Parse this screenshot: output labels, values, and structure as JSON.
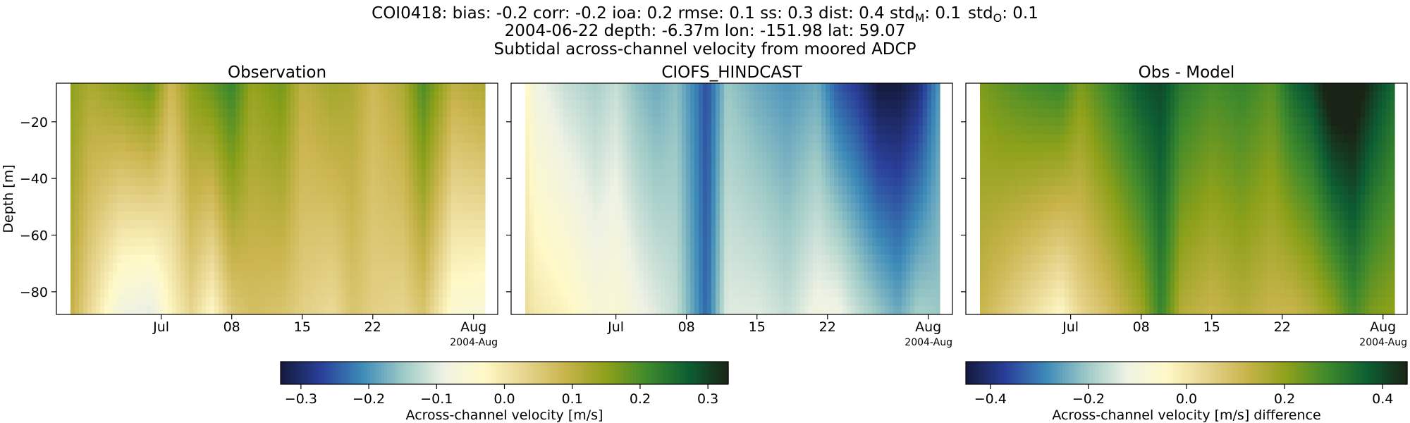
{
  "header": {
    "stats": "COI0418: bias: -0.2  corr: -0.2  ioa: 0.2  rmse: 0.1  ss: 0.3  dist: 0.4  std",
    "stats_tail": [
      {
        "base": "std",
        "sub": "M",
        "value": ": 0.1"
      },
      {
        "base": "std",
        "sub": "O",
        "value": ": 0.1"
      }
    ],
    "line2": "2004-06-22 depth: -6.37m lon: -151.98 lat: 59.07",
    "line3": "Subtidal across-channel velocity from moored ADCP"
  },
  "chart_data": [
    {
      "type": "heatmap",
      "title": "Observation",
      "ylabel": "Depth [m]",
      "xlabel": "",
      "x_range": [
        "2004-06-22",
        "2004-08-02"
      ],
      "ylim": [
        -88,
        -6.37
      ],
      "x_ticks": [
        "Jul",
        "08",
        "15",
        "22",
        "Aug"
      ],
      "x_tick_dates": [
        "2004-07-01",
        "2004-07-08",
        "2004-07-15",
        "2004-07-22",
        "2004-08-01"
      ],
      "x_offset_label": "2004-Aug",
      "y_ticks": [
        -20,
        -40,
        -60,
        -80
      ],
      "colorscale": "colorbar-1",
      "bands": [
        {
          "date": "2004-06-22",
          "surface": 0.15,
          "bottom": 0.1
        },
        {
          "date": "2004-06-24",
          "surface": 0.12,
          "bottom": 0.02
        },
        {
          "date": "2004-06-27",
          "surface": 0.15,
          "bottom": -0.08
        },
        {
          "date": "2004-06-30",
          "surface": 0.18,
          "bottom": -0.1
        },
        {
          "date": "2004-07-02",
          "surface": 0.08,
          "bottom": -0.02
        },
        {
          "date": "2004-07-04",
          "surface": 0.15,
          "bottom": 0.03
        },
        {
          "date": "2004-07-06",
          "surface": 0.18,
          "bottom": -0.03
        },
        {
          "date": "2004-07-08",
          "surface": 0.22,
          "bottom": 0.05
        },
        {
          "date": "2004-07-10",
          "surface": 0.14,
          "bottom": 0.07
        },
        {
          "date": "2004-07-13",
          "surface": 0.17,
          "bottom": 0.06
        },
        {
          "date": "2004-07-15",
          "surface": 0.1,
          "bottom": 0.04
        },
        {
          "date": "2004-07-18",
          "surface": 0.13,
          "bottom": 0.02
        },
        {
          "date": "2004-07-20",
          "surface": 0.12,
          "bottom": 0.06
        },
        {
          "date": "2004-07-22",
          "surface": 0.08,
          "bottom": 0.04
        },
        {
          "date": "2004-07-25",
          "surface": 0.12,
          "bottom": 0.03
        },
        {
          "date": "2004-07-27",
          "surface": 0.2,
          "bottom": 0.06
        },
        {
          "date": "2004-07-30",
          "surface": 0.1,
          "bottom": -0.05
        },
        {
          "date": "2004-08-02",
          "surface": 0.12,
          "bottom": -0.06
        }
      ]
    },
    {
      "type": "heatmap",
      "title": "CIOFS_HINDCAST",
      "ylabel": "",
      "xlabel": "",
      "x_range": [
        "2004-06-22",
        "2004-08-02"
      ],
      "ylim": [
        -88,
        -6.37
      ],
      "x_ticks": [
        "Jul",
        "08",
        "15",
        "22",
        "Aug"
      ],
      "x_tick_dates": [
        "2004-07-01",
        "2004-07-08",
        "2004-07-15",
        "2004-07-22",
        "2004-08-01"
      ],
      "x_offset_label": "2004-Aug",
      "y_ticks": [
        -20,
        -40,
        -60,
        -80
      ],
      "colorscale": "colorbar-1",
      "bands": [
        {
          "date": "2004-06-22",
          "surface": -0.02,
          "bottom": 0.02
        },
        {
          "date": "2004-06-23",
          "surface": -0.08,
          "bottom": 0.0
        },
        {
          "date": "2004-06-26",
          "surface": -0.12,
          "bottom": -0.02
        },
        {
          "date": "2004-06-29",
          "surface": -0.14,
          "bottom": -0.06
        },
        {
          "date": "2004-07-01",
          "surface": -0.12,
          "bottom": -0.05
        },
        {
          "date": "2004-07-03",
          "surface": -0.16,
          "bottom": -0.08
        },
        {
          "date": "2004-07-05",
          "surface": -0.18,
          "bottom": -0.1
        },
        {
          "date": "2004-07-07",
          "surface": -0.16,
          "bottom": -0.12
        },
        {
          "date": "2004-07-09",
          "surface": -0.22,
          "bottom": -0.2
        },
        {
          "date": "2004-07-10",
          "surface": -0.26,
          "bottom": -0.24
        },
        {
          "date": "2004-07-12",
          "surface": -0.15,
          "bottom": -0.1
        },
        {
          "date": "2004-07-15",
          "surface": -0.18,
          "bottom": -0.1
        },
        {
          "date": "2004-07-18",
          "surface": -0.2,
          "bottom": -0.12
        },
        {
          "date": "2004-07-21",
          "surface": -0.18,
          "bottom": -0.08
        },
        {
          "date": "2004-07-23",
          "surface": -0.25,
          "bottom": -0.08
        },
        {
          "date": "2004-07-25",
          "surface": -0.28,
          "bottom": -0.12
        },
        {
          "date": "2004-07-27",
          "surface": -0.33,
          "bottom": -0.15
        },
        {
          "date": "2004-07-29",
          "surface": -0.33,
          "bottom": -0.18
        },
        {
          "date": "2004-07-31",
          "surface": -0.3,
          "bottom": -0.14
        },
        {
          "date": "2004-08-02",
          "surface": -0.2,
          "bottom": -0.15
        }
      ]
    },
    {
      "type": "heatmap",
      "title": "Obs - Model",
      "ylabel": "",
      "xlabel": "",
      "x_range": [
        "2004-06-22",
        "2004-08-02"
      ],
      "ylim": [
        -88,
        -6.37
      ],
      "x_ticks": [
        "Jul",
        "08",
        "15",
        "22",
        "Aug"
      ],
      "x_tick_dates": [
        "2004-07-01",
        "2004-07-08",
        "2004-07-15",
        "2004-07-22",
        "2004-08-01"
      ],
      "x_offset_label": "2004-Aug",
      "y_ticks": [
        -20,
        -40,
        -60,
        -80
      ],
      "colorscale": "colorbar-2",
      "bands": [
        {
          "date": "2004-06-22",
          "surface": 0.22,
          "bottom": 0.12
        },
        {
          "date": "2004-06-24",
          "surface": 0.25,
          "bottom": 0.08
        },
        {
          "date": "2004-06-27",
          "surface": 0.28,
          "bottom": 0.02
        },
        {
          "date": "2004-06-30",
          "surface": 0.3,
          "bottom": -0.04
        },
        {
          "date": "2004-07-02",
          "surface": 0.22,
          "bottom": 0.04
        },
        {
          "date": "2004-07-05",
          "surface": 0.3,
          "bottom": 0.1
        },
        {
          "date": "2004-07-08",
          "surface": 0.38,
          "bottom": 0.18
        },
        {
          "date": "2004-07-10",
          "surface": 0.4,
          "bottom": 0.3
        },
        {
          "date": "2004-07-12",
          "surface": 0.32,
          "bottom": 0.15
        },
        {
          "date": "2004-07-15",
          "surface": 0.28,
          "bottom": 0.12
        },
        {
          "date": "2004-07-18",
          "surface": 0.3,
          "bottom": 0.15
        },
        {
          "date": "2004-07-21",
          "surface": 0.26,
          "bottom": 0.12
        },
        {
          "date": "2004-07-23",
          "surface": 0.35,
          "bottom": 0.12
        },
        {
          "date": "2004-07-25",
          "surface": 0.4,
          "bottom": 0.15
        },
        {
          "date": "2004-07-27",
          "surface": 0.5,
          "bottom": 0.2
        },
        {
          "date": "2004-07-29",
          "surface": 0.5,
          "bottom": 0.28
        },
        {
          "date": "2004-07-31",
          "surface": 0.42,
          "bottom": 0.22
        },
        {
          "date": "2004-08-02",
          "surface": 0.35,
          "bottom": 0.2
        }
      ]
    }
  ],
  "colorbars": [
    {
      "id": "colorbar-1",
      "label": "Across-channel velocity [m/s]",
      "vmin": -0.33,
      "vmax": 0.33,
      "ticks": [
        -0.3,
        -0.2,
        -0.1,
        0.0,
        0.1,
        0.2,
        0.3
      ],
      "tick_labels": [
        "−0.3",
        "−0.2",
        "−0.1",
        "0.0",
        "0.1",
        "0.2",
        "0.3"
      ]
    },
    {
      "id": "colorbar-2",
      "label": "Across-channel velocity [m/s] difference",
      "vmin": -0.45,
      "vmax": 0.45,
      "ticks": [
        -0.4,
        -0.2,
        0.0,
        0.2,
        0.4
      ],
      "tick_labels": [
        "−0.4",
        "−0.2",
        "0.0",
        "0.2",
        "0.4"
      ]
    }
  ],
  "colormap": {
    "name": "diverging blue-cream-green",
    "stops": [
      "#141a3d",
      "#2a3f9a",
      "#3c8ab8",
      "#9cc9c6",
      "#eef2e4",
      "#fff9c8",
      "#e7d58f",
      "#c9b44c",
      "#8ea11a",
      "#3f8a2c",
      "#0d5f33",
      "#1a2416"
    ]
  }
}
